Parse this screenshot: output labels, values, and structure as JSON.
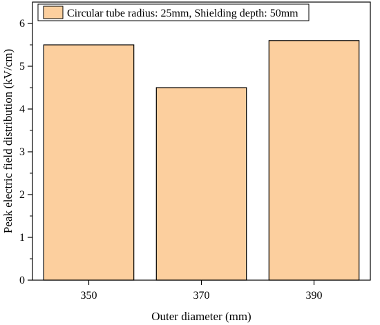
{
  "chart_data": {
    "type": "bar",
    "categories": [
      "350",
      "370",
      "390"
    ],
    "values": [
      5.5,
      4.5,
      5.6
    ],
    "series": [
      {
        "name": "Circular tube radius: 25mm, Shielding depth: 50mm",
        "values": [
          5.5,
          4.5,
          5.6
        ]
      }
    ],
    "title": "",
    "xlabel": "Outer diameter (mm)",
    "ylabel": "Peak electric field distribution (kV/cm)",
    "ylim": [
      0,
      6.5
    ],
    "yticks": [
      "0",
      "1",
      "2",
      "3",
      "4",
      "5",
      "6"
    ],
    "grid": false,
    "legend_position": "top-left",
    "colors": {
      "bar_fill": "#fccf9e",
      "bar_stroke": "#000000",
      "axis": "#000000"
    }
  }
}
